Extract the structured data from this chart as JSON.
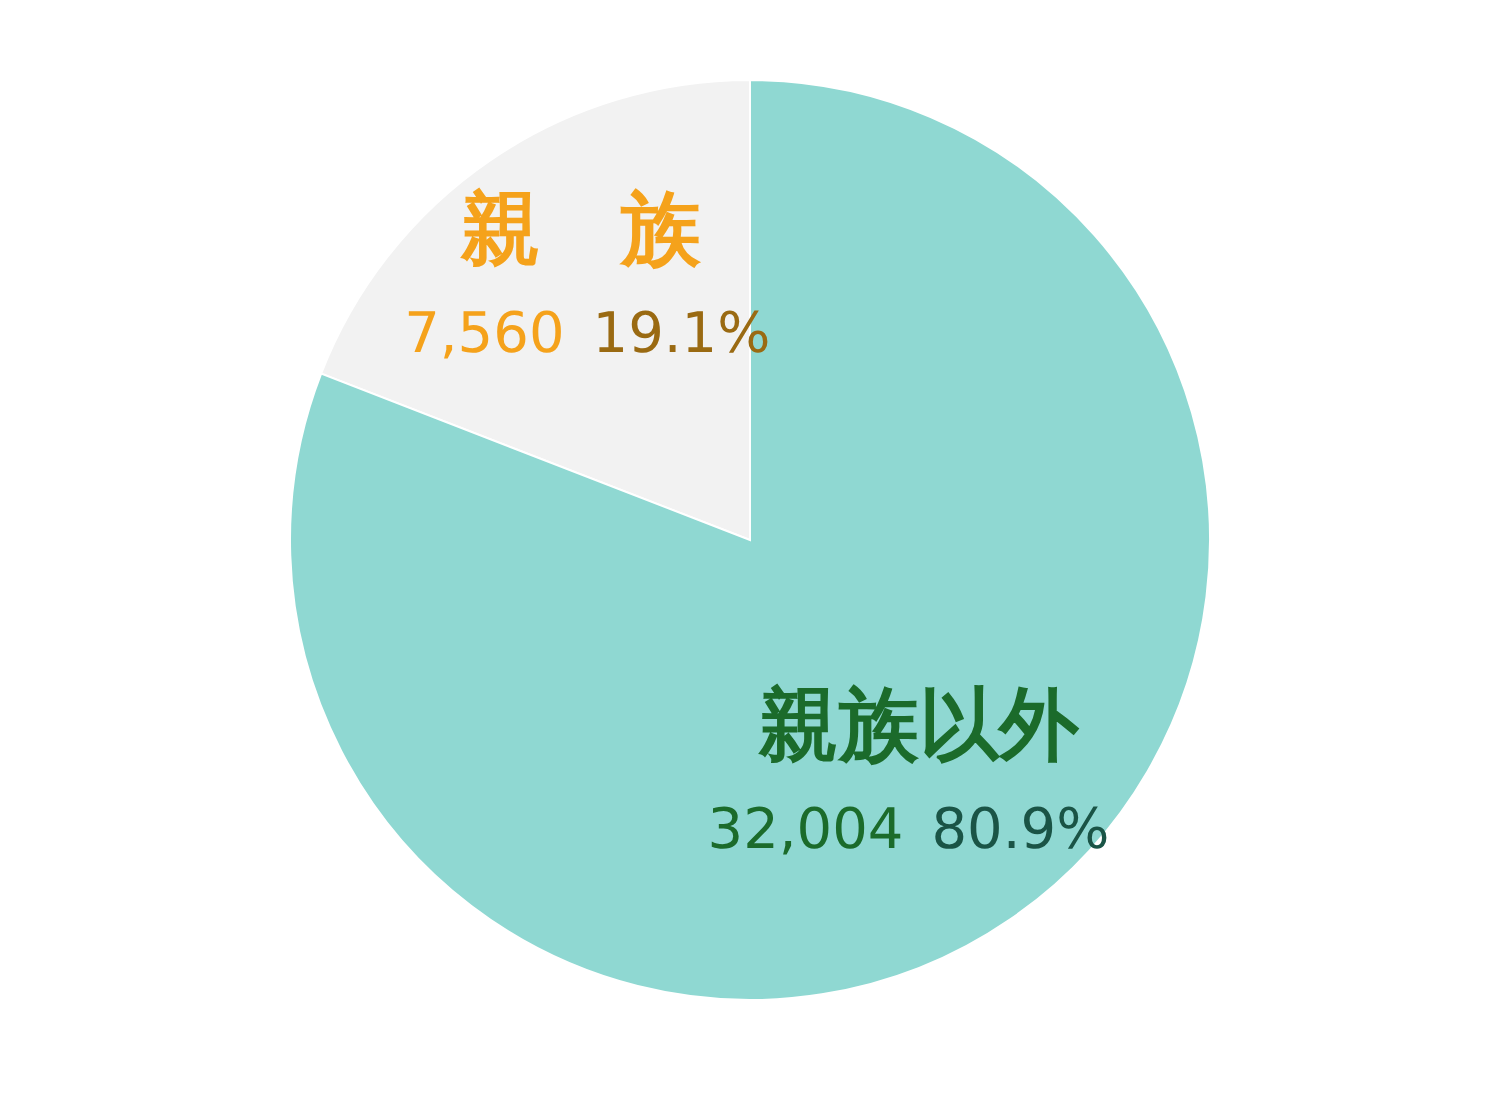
{
  "chart_data": {
    "type": "pie",
    "categories": [
      "親　族",
      "親族以外"
    ],
    "values": [
      7560,
      32004
    ],
    "colors": [
      "#f2f2f2",
      "#8fd8d2"
    ],
    "value_labels": [
      "7,560",
      "32,004"
    ],
    "annotations": [
      "19.1%",
      "80.9%"
    ]
  }
}
